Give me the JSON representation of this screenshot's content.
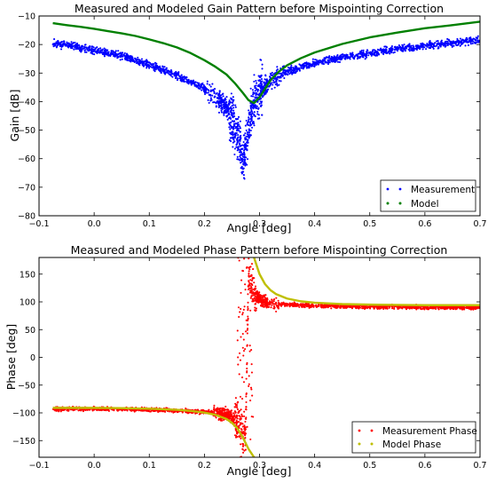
{
  "chart_data": [
    {
      "type": "scatter",
      "title": "Measured and Modeled Gain Pattern before Mispointing Correction",
      "xlabel": "Angle [deg]",
      "ylabel": "Gain [dB]",
      "xlim": [
        -0.1,
        0.7
      ],
      "ylim": [
        -80,
        -10
      ],
      "xticks": [
        "−0.1",
        "0.0",
        "0.1",
        "0.2",
        "0.3",
        "0.4",
        "0.5",
        "0.6",
        "0.7"
      ],
      "yticks": [
        "−80",
        "−70",
        "−60",
        "−50",
        "−40",
        "−30",
        "−20",
        "−10"
      ],
      "grid": false,
      "legend_position": "lower-right",
      "series": [
        {
          "name": "Measurement",
          "kind": "scatter",
          "color": "#0000ff",
          "x": [
            -0.075,
            -0.05,
            -0.025,
            0.0,
            0.025,
            0.05,
            0.075,
            0.1,
            0.125,
            0.15,
            0.175,
            0.2,
            0.215,
            0.23,
            0.245,
            0.255,
            0.265,
            0.27,
            0.275,
            0.28,
            0.285,
            0.29,
            0.3,
            0.31,
            0.32,
            0.33,
            0.35,
            0.375,
            0.4,
            0.425,
            0.45,
            0.5,
            0.55,
            0.6,
            0.65,
            0.7
          ],
          "y": [
            -19.5,
            -20.2,
            -21,
            -22,
            -23,
            -24,
            -25.5,
            -27,
            -29,
            -31,
            -33,
            -35.5,
            -37.5,
            -40,
            -44,
            -49,
            -55,
            -60,
            -57,
            -50,
            -45,
            -40,
            -37,
            -35,
            -33,
            -31.5,
            -29.5,
            -28,
            -26.5,
            -25.5,
            -24.5,
            -23,
            -21.5,
            -20.5,
            -19.5,
            -18.5
          ]
        },
        {
          "name": "Model",
          "kind": "line",
          "color": "#008000",
          "x": [
            -0.075,
            -0.05,
            -0.025,
            0.0,
            0.025,
            0.05,
            0.075,
            0.1,
            0.125,
            0.15,
            0.175,
            0.2,
            0.22,
            0.24,
            0.255,
            0.27,
            0.28,
            0.29,
            0.3,
            0.31,
            0.32,
            0.335,
            0.35,
            0.375,
            0.4,
            0.45,
            0.5,
            0.55,
            0.6,
            0.65,
            0.7
          ],
          "y": [
            -12.5,
            -13.2,
            -13.8,
            -14.5,
            -15.3,
            -16.1,
            -17,
            -18.2,
            -19.5,
            -21,
            -23,
            -25.5,
            -27.8,
            -30.5,
            -33.5,
            -37,
            -39.5,
            -40.5,
            -38.5,
            -35.5,
            -32.5,
            -29.5,
            -27.3,
            -24.8,
            -22.8,
            -19.8,
            -17.5,
            -15.8,
            -14.3,
            -13.2,
            -12
          ]
        }
      ]
    },
    {
      "type": "scatter",
      "title": "Measured and Modeled Phase Pattern before Mispointing Correction",
      "xlabel": "Angle [deg]",
      "ylabel": "Phase [deg]",
      "xlim": [
        -0.1,
        0.7
      ],
      "ylim": [
        -180,
        180
      ],
      "xticks": [
        "−0.1",
        "0.0",
        "0.1",
        "0.2",
        "0.3",
        "0.4",
        "0.5",
        "0.6",
        "0.7"
      ],
      "yticks": [
        "−150",
        "−100",
        "−50",
        "0",
        "50",
        "100",
        "150"
      ],
      "grid": false,
      "legend_position": "lower-right",
      "series": [
        {
          "name": "Measurement Phase",
          "kind": "scatter",
          "color": "#ff0000",
          "x": [
            -0.075,
            -0.05,
            -0.025,
            0.0,
            0.025,
            0.05,
            0.075,
            0.1,
            0.125,
            0.15,
            0.175,
            0.2,
            0.22,
            0.24,
            0.25,
            0.26,
            0.265,
            0.27,
            0.275,
            0.28,
            0.285,
            0.29,
            0.3,
            0.31,
            0.32,
            0.33,
            0.35,
            0.375,
            0.4,
            0.45,
            0.5,
            0.55,
            0.6,
            0.65,
            0.7
          ],
          "y": [
            -93,
            -93,
            -93,
            -93,
            -93,
            -93,
            -94,
            -94,
            -95,
            -96,
            -97,
            -98,
            -100,
            -104,
            -108,
            -115,
            -125,
            -140,
            -130,
            150,
            130,
            115,
            105,
            100,
            98,
            96,
            95,
            94,
            93,
            92,
            91,
            91,
            90,
            90,
            90
          ]
        },
        {
          "name": "Model Phase",
          "kind": "line",
          "color": "#bfbf00",
          "segments": [
            {
              "x": [
                -0.075,
                -0.05,
                0.0,
                0.05,
                0.1,
                0.15,
                0.175,
                0.2,
                0.22,
                0.24,
                0.25,
                0.26,
                0.27,
                0.28,
                0.29,
                0.3
              ],
              "y": [
                -91,
                -91,
                -91,
                -91.5,
                -92.5,
                -94.5,
                -96.5,
                -99.5,
                -103.5,
                -111,
                -118,
                -128,
                -145,
                -165,
                -180,
                -190
              ]
            },
            {
              "x": [
                0.285,
                0.29,
                0.3,
                0.31,
                0.32,
                0.33,
                0.35,
                0.375,
                0.4,
                0.45,
                0.5,
                0.55,
                0.6,
                0.65,
                0.7
              ],
              "y": [
                190,
                180,
                150,
                132,
                121,
                114,
                106,
                101,
                98.5,
                96,
                95,
                94.5,
                94,
                94,
                94
              ]
            }
          ]
        }
      ]
    }
  ]
}
